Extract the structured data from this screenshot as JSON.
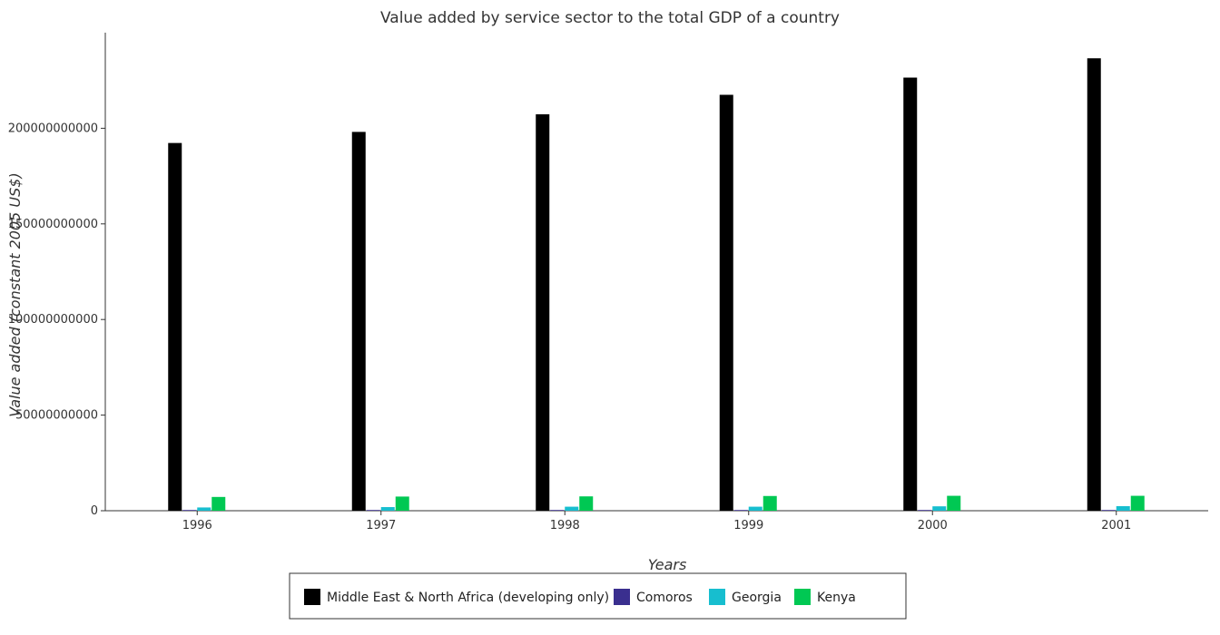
{
  "chart_data": {
    "type": "bar",
    "title": "Value added by service sector to the total GDP of a country",
    "xlabel": "Years",
    "ylabel": "Value added (constant 2005 US$)",
    "categories": [
      "1996",
      "1997",
      "1998",
      "1999",
      "2000",
      "2001"
    ],
    "ylim": [
      0,
      250000000000
    ],
    "yticks": [
      0,
      50000000000,
      100000000000,
      150000000000,
      200000000000
    ],
    "ytick_labels": [
      "0",
      "50000000000",
      "100000000000",
      "150000000000",
      "200000000000"
    ],
    "legend_position": "bottom-center",
    "grid": false,
    "series": [
      {
        "name": "Middle East & North Africa (developing only)",
        "color": "#000000",
        "values": [
          192300000000,
          198100000000,
          207300000000,
          217500000000,
          226500000000,
          236600000000
        ]
      },
      {
        "name": "Comoros",
        "color": "#3a2f8f",
        "values": [
          160000000,
          160000000,
          165000000,
          170000000,
          175000000,
          180000000
        ]
      },
      {
        "name": "Georgia",
        "color": "#17becf",
        "values": [
          1700000000,
          1900000000,
          2100000000,
          2100000000,
          2300000000,
          2400000000
        ]
      },
      {
        "name": "Kenya",
        "color": "#00c853",
        "values": [
          7200000000,
          7400000000,
          7500000000,
          7700000000,
          7800000000,
          7800000000
        ]
      }
    ]
  }
}
